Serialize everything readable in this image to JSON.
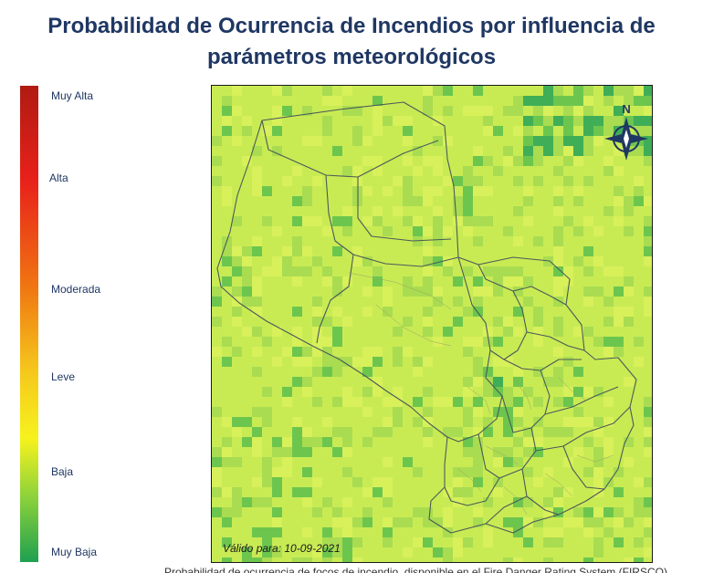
{
  "title": {
    "line1": "Probabilidad de Ocurrencia de Incendios por influencia de",
    "line2": "parámetros meteorológicos"
  },
  "legend": {
    "labels": [
      "Muy Alta",
      "Alta",
      "Moderada",
      "Leve",
      "Baja",
      "Muy Baja"
    ]
  },
  "map": {
    "valid_label": "Válido para: 10-09-2021",
    "compass_letter": "N",
    "colors": {
      "base": "#c8eb54",
      "light": "#d8f05a",
      "mid": "#a9dc50",
      "dark": "#6cc64e",
      "darkest": "#3fae57",
      "border": "#4a5a5a"
    }
  },
  "footer": {
    "text": "Probabilidad de ocurrencia de focos de incendio, disponible en el Fire Danger Rating System (FIRSCO)"
  }
}
